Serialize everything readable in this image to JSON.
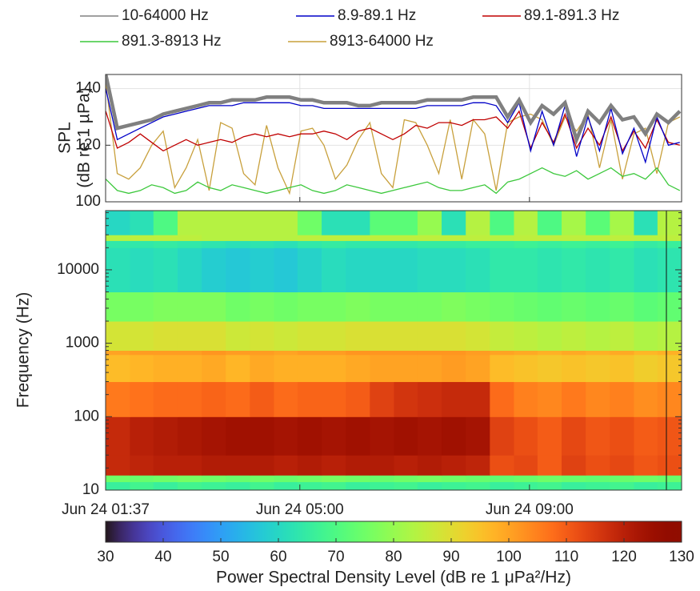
{
  "chart_data": [
    {
      "type": "line",
      "ylabel": [
        "SPL",
        "(dB re 1 µPa)"
      ],
      "x": [
        1.62,
        1.82,
        2.02,
        2.22,
        2.42,
        2.62,
        2.82,
        3.02,
        3.22,
        3.42,
        3.62,
        3.82,
        4.02,
        4.22,
        4.42,
        4.62,
        4.82,
        5.02,
        5.22,
        5.42,
        5.62,
        5.82,
        6.02,
        6.22,
        6.42,
        6.62,
        6.82,
        7.02,
        7.22,
        7.42,
        7.62,
        7.82,
        8.02,
        8.22,
        8.42,
        8.62,
        8.82,
        9.02,
        9.22,
        9.42,
        9.62,
        9.82,
        10.02,
        10.22,
        10.42,
        10.62,
        10.82,
        11.02,
        11.22,
        11.42,
        11.62
      ],
      "xlim": [
        1.6167,
        11.65
      ],
      "ylim": [
        100,
        145
      ],
      "yticks": [
        100,
        120,
        140
      ],
      "grid": true,
      "legend": "outside-top",
      "series": [
        {
          "name": "10-64000 Hz",
          "color": "#808080",
          "values": [
            145,
            126,
            127,
            128,
            129,
            131,
            132,
            133,
            134,
            135,
            135,
            136,
            136,
            136,
            137,
            137,
            137,
            136,
            136,
            135,
            135,
            135,
            134,
            134,
            135,
            135,
            135,
            135,
            136,
            136,
            136,
            136,
            137,
            137,
            137,
            130,
            136,
            128,
            134,
            131,
            135,
            122,
            132,
            128,
            134,
            129,
            130,
            124,
            131,
            128,
            132
          ]
        },
        {
          "name": "8.9-89.1 Hz",
          "color": "#0000c8",
          "values": [
            140,
            122,
            124,
            126,
            128,
            130,
            131,
            132,
            133,
            134,
            134,
            134,
            135,
            135,
            135,
            135,
            135,
            134,
            134,
            133,
            133,
            133,
            133,
            133,
            133,
            133,
            133,
            133,
            134,
            134,
            134,
            134,
            135,
            135,
            134,
            128,
            135,
            118,
            132,
            120,
            134,
            116,
            130,
            118,
            133,
            117,
            126,
            114,
            130,
            120,
            121
          ]
        },
        {
          "name": "89.1-891.3 Hz",
          "color": "#c00000",
          "values": [
            132,
            119,
            121,
            124,
            121,
            118,
            120,
            122,
            120,
            121,
            122,
            121,
            123,
            124,
            123,
            124,
            123,
            124,
            124,
            125,
            124,
            122,
            125,
            126,
            124,
            122,
            124,
            127,
            126,
            128,
            128,
            127,
            129,
            129,
            130,
            126,
            132,
            119,
            128,
            121,
            131,
            119,
            126,
            120,
            130,
            118,
            125,
            119,
            129,
            121,
            120
          ]
        },
        {
          "name": "891.3-8913 Hz",
          "color": "#3cc83c",
          "values": [
            108,
            104,
            103,
            104,
            106,
            105,
            103,
            104,
            107,
            105,
            104,
            106,
            105,
            104,
            103,
            104,
            105,
            106,
            104,
            103,
            104,
            106,
            105,
            104,
            103,
            104,
            105,
            106,
            107,
            105,
            104,
            104,
            105,
            106,
            103,
            107,
            108,
            110,
            112,
            110,
            109,
            111,
            108,
            110,
            112,
            109,
            110,
            108,
            112,
            106,
            104
          ]
        },
        {
          "name": "8913-64000 Hz",
          "color": "#c8a03c",
          "values": [
            142,
            110,
            108,
            112,
            120,
            125,
            105,
            112,
            122,
            104,
            128,
            126,
            110,
            106,
            127,
            112,
            103,
            125,
            126,
            120,
            108,
            113,
            122,
            128,
            110,
            105,
            129,
            128,
            120,
            110,
            129,
            108,
            129,
            124,
            104,
            128,
            130,
            131,
            129,
            120,
            130,
            125,
            131,
            112,
            129,
            108,
            124,
            126,
            110,
            128,
            130
          ]
        }
      ]
    },
    {
      "type": "heatmap",
      "ylabel": "Frequency (Hz)",
      "log_y": true,
      "colormap": "turbo",
      "xlim": [
        1.6167,
        11.65
      ],
      "xticks": [
        {
          "value": 1.6167,
          "label": "Jun 24 01:37"
        },
        {
          "value": 5,
          "label": "Jun 24 05:00"
        },
        {
          "value": 9,
          "label": "Jun 24 09:00"
        }
      ],
      "ylim": [
        10,
        64000
      ],
      "yticks": [
        10,
        100,
        1000,
        10000
      ],
      "x_edges": [
        1.6167,
        2.04,
        2.45,
        2.87,
        3.29,
        3.71,
        4.13,
        4.55,
        4.96,
        5.38,
        5.8,
        6.22,
        6.64,
        7.05,
        7.47,
        7.89,
        8.31,
        8.73,
        9.14,
        9.56,
        9.98,
        10.4,
        10.82,
        11.23,
        11.65
      ],
      "y_edges": [
        10,
        13,
        16,
        30,
        100,
        300,
        700,
        800,
        2000,
        5000,
        20000,
        25000,
        30000,
        64000
      ],
      "z": [
        [
          66,
          68,
          66,
          68,
          67,
          66,
          68,
          66,
          67,
          68,
          66,
          67,
          68,
          66,
          67,
          68,
          66,
          67,
          68,
          66,
          67,
          68,
          66,
          67
        ],
        [
          75,
          74,
          75,
          76,
          75,
          74,
          75,
          74,
          75,
          76,
          75,
          74,
          75,
          76,
          75,
          74,
          73,
          74,
          75,
          74,
          73,
          74,
          75,
          74
        ],
        [
          118,
          119,
          120,
          120,
          121,
          121,
          121,
          120,
          121,
          120,
          121,
          121,
          120,
          121,
          120,
          119,
          112,
          113,
          110,
          114,
          112,
          113,
          111,
          112
        ],
        [
          118,
          120,
          121,
          122,
          123,
          124,
          124,
          123,
          124,
          123,
          124,
          123,
          124,
          123,
          124,
          123,
          114,
          112,
          110,
          113,
          111,
          112,
          110,
          111
        ],
        [
          106,
          107,
          108,
          108,
          109,
          108,
          110,
          108,
          109,
          109,
          110,
          114,
          116,
          117,
          118,
          118,
          108,
          105,
          104,
          106,
          104,
          105,
          103,
          104
        ],
        [
          96,
          97,
          98,
          98,
          99,
          97,
          99,
          98,
          98,
          98,
          99,
          100,
          100,
          100,
          101,
          100,
          96,
          95,
          94,
          95,
          94,
          95,
          93,
          94
        ],
        [
          100,
          101,
          101,
          101,
          102,
          101,
          101,
          100,
          101,
          101,
          102,
          102,
          102,
          102,
          102,
          101,
          100,
          99,
          98,
          99,
          98,
          99,
          97,
          98
        ],
        [
          88,
          88,
          89,
          89,
          89,
          87,
          88,
          87,
          88,
          88,
          89,
          89,
          89,
          89,
          89,
          88,
          86,
          85,
          84,
          85,
          84,
          85,
          83,
          84
        ],
        [
          76,
          76,
          77,
          77,
          77,
          75,
          76,
          75,
          76,
          76,
          77,
          76,
          76,
          76,
          77,
          76,
          75,
          74,
          73,
          74,
          73,
          74,
          72,
          73
        ],
        [
          62,
          61,
          62,
          60,
          58,
          57,
          58,
          57,
          59,
          61,
          60,
          60,
          60,
          61,
          61,
          62,
          64,
          64,
          63,
          64,
          63,
          64,
          62,
          63
        ],
        [
          64,
          64,
          65,
          64,
          63,
          62,
          63,
          62,
          64,
          65,
          64,
          64,
          64,
          65,
          65,
          66,
          66,
          67,
          66,
          67,
          66,
          67,
          65,
          66
        ],
        [
          84,
          85,
          85,
          85,
          84,
          84,
          84,
          84,
          85,
          85,
          85,
          85,
          85,
          85,
          85,
          85,
          84,
          85,
          85,
          85,
          85,
          85,
          84,
          85
        ],
        [
          60,
          62,
          70,
          84,
          84,
          84,
          84,
          84,
          75,
          62,
          62,
          72,
          72,
          80,
          62,
          84,
          70,
          84,
          70,
          82,
          72,
          82,
          62,
          84
        ]
      ],
      "clim": [
        30,
        130
      ],
      "cticks": [
        30,
        40,
        50,
        60,
        70,
        80,
        90,
        100,
        110,
        120,
        130
      ],
      "colorbar_label": "Power Spectral Density Level (dB re 1 μPa²/Hz)"
    }
  ]
}
